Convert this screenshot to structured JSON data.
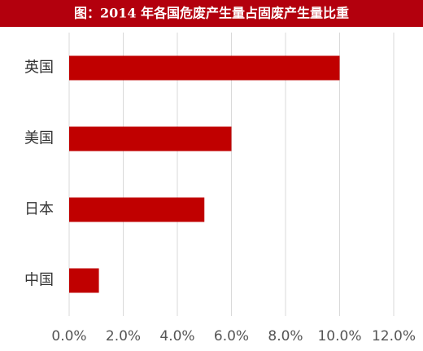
{
  "chart_data": {
    "type": "bar",
    "orientation": "horizontal",
    "title": "图：2014 年各国危废产生量占固废产生量比重",
    "categories": [
      "英国",
      "美国",
      "日本",
      "中国"
    ],
    "values": [
      10.0,
      6.0,
      5.0,
      1.1
    ],
    "color": "#c00000",
    "xlim": [
      0,
      12
    ],
    "xticks": [
      {
        "value": 0,
        "label": "0.0%"
      },
      {
        "value": 2,
        "label": "2.0%"
      },
      {
        "value": 4,
        "label": "4.0%"
      },
      {
        "value": 6,
        "label": "6.0%"
      },
      {
        "value": 8,
        "label": "8.0%"
      },
      {
        "value": 10,
        "label": "10.0%"
      },
      {
        "value": 12,
        "label": "12.0%"
      }
    ],
    "grid": true
  }
}
